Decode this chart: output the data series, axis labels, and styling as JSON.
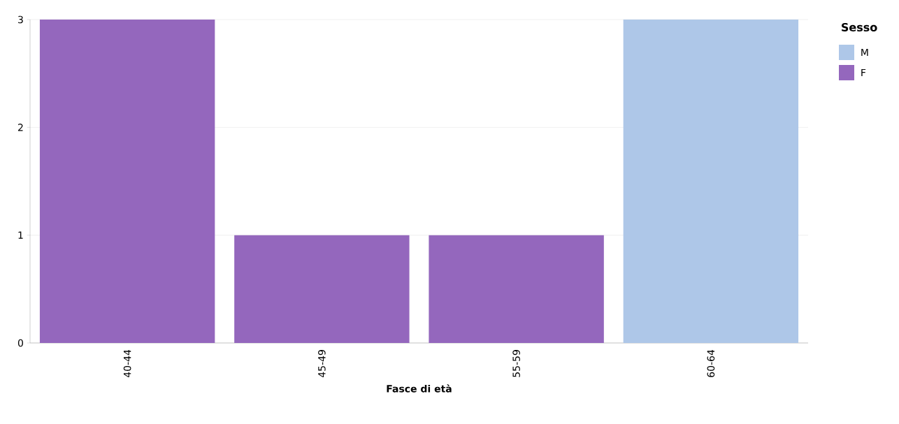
{
  "chart_data": {
    "type": "bar",
    "stacked": true,
    "xlabel": "Fasce di età",
    "legend_title": "Sesso",
    "legend": "top right",
    "grid": "y",
    "categories": [
      "40-44",
      "45-49",
      "55-59",
      "60-64"
    ],
    "series": [
      {
        "name": "M",
        "color": "#aec7e8",
        "values": [
          null,
          null,
          null,
          3
        ]
      },
      {
        "name": "F",
        "color": "#9467bd",
        "values": [
          3,
          1,
          1,
          null
        ]
      }
    ],
    "ylim": [
      0,
      3
    ],
    "yticks": [
      0,
      1,
      2,
      3
    ]
  }
}
